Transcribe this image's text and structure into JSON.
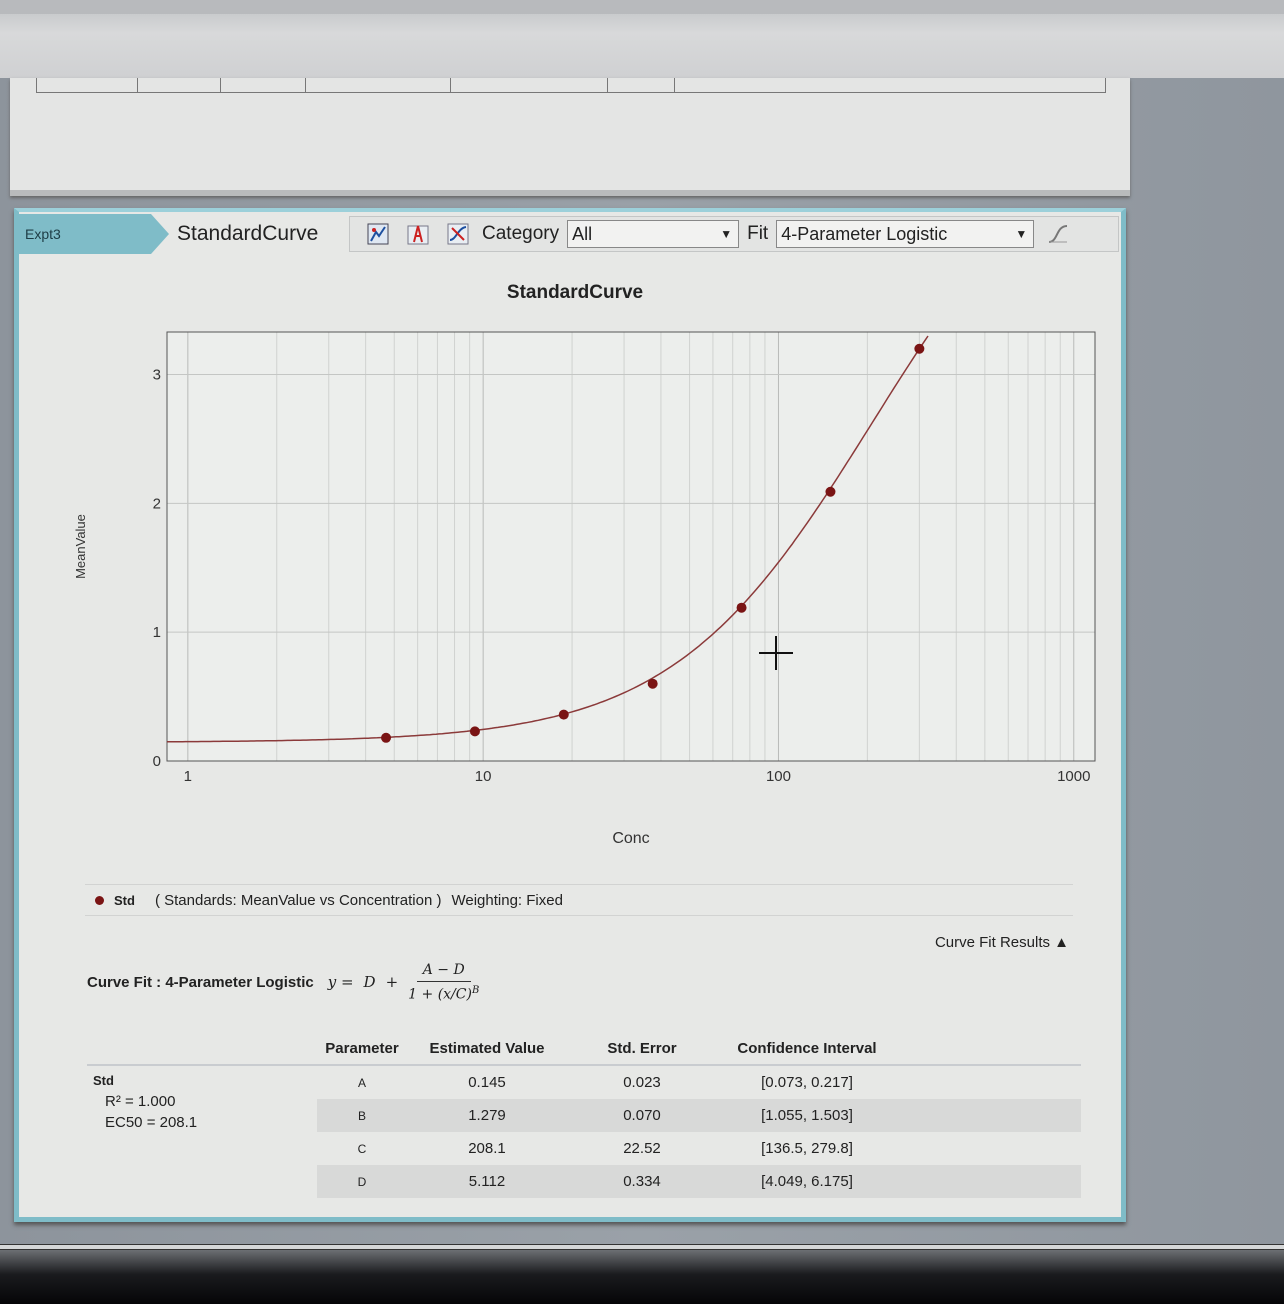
{
  "panel": {
    "tab_label": "Expt3",
    "title": "StandardCurve",
    "toolbar": {
      "icons": [
        "chart-settings-icon",
        "axis-format-icon",
        "curve-fit-icon",
        "curve-shape-icon"
      ],
      "category_label": "Category",
      "category_value": "All",
      "fit_label": "Fit",
      "fit_value": "4-Parameter Logistic"
    }
  },
  "chart_data": {
    "type": "scatter",
    "title": "StandardCurve",
    "xlabel": "Conc",
    "ylabel": "MeanValue",
    "x_scale": "log",
    "xlim": [
      0.85,
      1180
    ],
    "ylim": [
      0,
      3.33
    ],
    "x_ticks": [
      "1",
      "10",
      "100",
      "1000"
    ],
    "y_ticks": [
      "0",
      "1",
      "2",
      "3"
    ],
    "grid": true,
    "point_color": "#7a1414",
    "curve_color": "#8b3a3a",
    "series": [
      {
        "name": "Std",
        "x": [
          4.69,
          9.38,
          18.75,
          37.5,
          75,
          150,
          300
        ],
        "y": [
          0.18,
          0.23,
          0.36,
          0.6,
          1.19,
          2.09,
          3.2
        ]
      }
    ],
    "fit": {
      "A": 0.145,
      "B": 1.279,
      "C": 208.1,
      "D": 5.112
    }
  },
  "legend": {
    "series_name": "Std",
    "description": "( Standards: MeanValue vs Concentration )",
    "weighting": "Weighting: Fixed"
  },
  "curve_fit_results_toggle": "Curve Fit Results ▲",
  "equation": {
    "label": "Curve Fit : 4-Parameter Logistic",
    "lhs": "y =",
    "d": "D",
    "plus": "+",
    "numerator": "A − D",
    "denominator": "1 + (x/C)",
    "exponent": "B"
  },
  "results": {
    "headers": [
      "Parameter",
      "Estimated Value",
      "Std. Error",
      "Confidence Interval"
    ],
    "std_name": "Std",
    "r2": "R² = 1.000",
    "ec50": "EC50 = 208.1",
    "rows": [
      {
        "param": "A",
        "value": "0.145",
        "error": "0.023",
        "ci": "[0.073, 0.217]"
      },
      {
        "param": "B",
        "value": "1.279",
        "error": "0.070",
        "ci": "[1.055, 1.503]"
      },
      {
        "param": "C",
        "value": "208.1",
        "error": "22.52",
        "ci": "[136.5, 279.8]"
      },
      {
        "param": "D",
        "value": "5.112",
        "error": "0.334",
        "ci": "[4.049, 6.175]"
      }
    ]
  }
}
